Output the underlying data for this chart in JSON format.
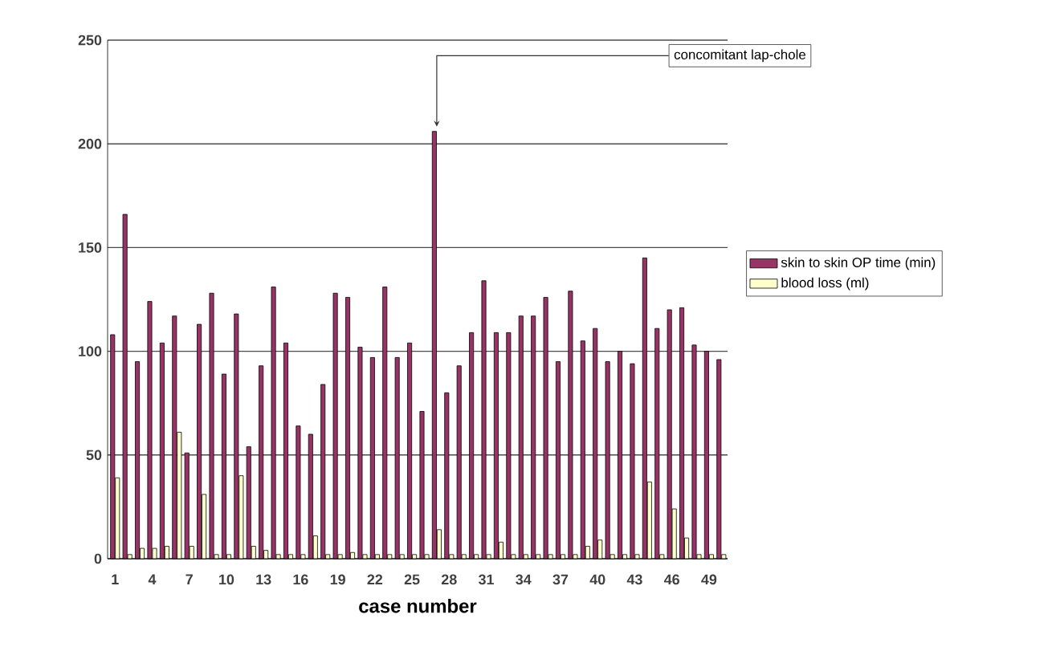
{
  "chart_data": {
    "type": "bar",
    "xlabel": "case number",
    "categories": [
      "1",
      null,
      null,
      "4",
      null,
      null,
      "7",
      null,
      null,
      "10",
      null,
      null,
      "13",
      null,
      null,
      "16",
      null,
      null,
      "19",
      null,
      null,
      "22",
      null,
      null,
      "25",
      null,
      null,
      "28",
      null,
      null,
      "31",
      null,
      null,
      "34",
      null,
      null,
      "37",
      null,
      null,
      "40",
      null,
      null,
      "43",
      null,
      null,
      "46",
      null,
      null,
      "49",
      null
    ],
    "series": [
      {
        "name": "skin to skin OP time (min)",
        "color": "#993366",
        "values": [
          108,
          166,
          95,
          124,
          104,
          117,
          51,
          113,
          128,
          89,
          118,
          54,
          93,
          131,
          104,
          64,
          60,
          84,
          128,
          126,
          102,
          97,
          131,
          97,
          104,
          71,
          206,
          80,
          93,
          109,
          134,
          109,
          109,
          117,
          117,
          126,
          95,
          129,
          105,
          111,
          95,
          100,
          94,
          145,
          111,
          120,
          121,
          103,
          100,
          96
        ]
      },
      {
        "name": "blood loss (ml)",
        "color": "#ffffcc",
        "values": [
          39,
          2,
          5,
          5,
          6,
          61,
          6,
          31,
          2,
          2,
          40,
          6,
          4,
          2,
          2,
          2,
          11,
          2,
          2,
          3,
          2,
          2,
          2,
          2,
          2,
          2,
          14,
          2,
          2,
          2,
          2,
          8,
          2,
          2,
          2,
          2,
          2,
          2,
          6,
          9,
          2,
          2,
          2,
          37,
          2,
          24,
          10,
          2,
          2,
          2
        ]
      }
    ],
    "ylim": [
      0,
      250
    ],
    "yticks": [
      0,
      50,
      100,
      150,
      200,
      250
    ],
    "grid": "y",
    "legend": "right",
    "annotations": [
      "concomitant lap-chole"
    ]
  }
}
